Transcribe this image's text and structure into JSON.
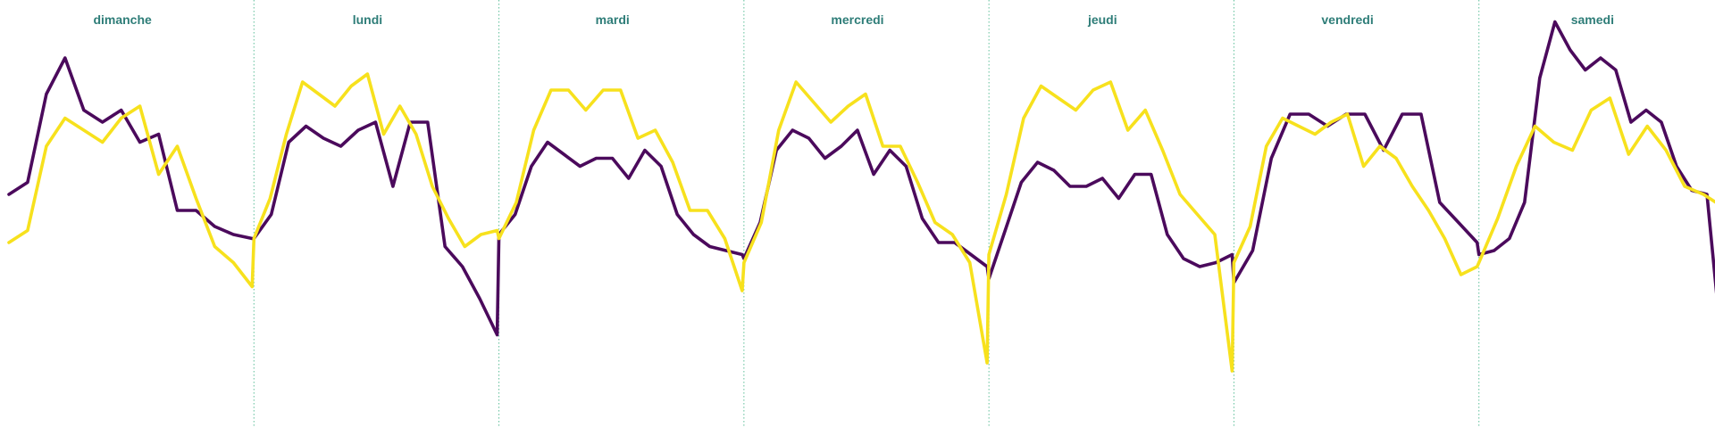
{
  "chart_data": {
    "type": "line",
    "title": "",
    "xlabel": "",
    "ylabel": "",
    "ylim": [
      0,
      100
    ],
    "grid": false,
    "panels": [
      {
        "label": "dimanche",
        "s1": [
          56,
          59,
          81,
          90,
          77,
          74,
          77,
          69,
          71,
          52,
          52,
          48,
          46,
          45
        ],
        "s2": [
          44,
          47,
          68,
          75,
          72,
          69,
          75,
          78,
          61,
          68,
          55,
          43,
          39,
          33
        ]
      },
      {
        "label": "lundi",
        "s1": [
          45,
          51,
          69,
          73,
          70,
          68,
          72,
          74,
          58,
          74,
          74,
          43,
          38,
          30,
          21
        ],
        "s2": [
          45,
          55,
          71,
          84,
          81,
          78,
          83,
          86,
          71,
          78,
          71,
          58,
          50,
          43,
          46,
          47
        ]
      },
      {
        "label": "mardi",
        "s1": [
          46,
          51,
          63,
          69,
          66,
          63,
          65,
          65,
          60,
          67,
          63,
          51,
          46,
          43,
          42,
          41
        ],
        "s2": [
          45,
          54,
          72,
          82,
          82,
          77,
          82,
          82,
          70,
          72,
          64,
          52,
          52,
          45,
          32
        ]
      },
      {
        "label": "mercredi",
        "s1": [
          40,
          49,
          67,
          72,
          70,
          65,
          68,
          72,
          61,
          67,
          63,
          50,
          44,
          44,
          41,
          38
        ],
        "s2": [
          39,
          49,
          72,
          84,
          79,
          74,
          78,
          81,
          68,
          68,
          59,
          49,
          46,
          39,
          14
        ]
      },
      {
        "label": "jeudi",
        "s1": [
          35,
          47,
          59,
          64,
          62,
          58,
          58,
          60,
          55,
          61,
          61,
          46,
          40,
          38,
          39,
          41
        ],
        "s2": [
          41,
          56,
          75,
          83,
          80,
          77,
          82,
          84,
          72,
          77,
          67,
          56,
          51,
          46,
          12
        ]
      },
      {
        "label": "vendredi",
        "s1": [
          34,
          42,
          65,
          76,
          76,
          73,
          76,
          76,
          67,
          76,
          76,
          54,
          49,
          44
        ],
        "s2": [
          39,
          48,
          68,
          75,
          73,
          71,
          74,
          76,
          63,
          68,
          65,
          58,
          52,
          45,
          36,
          38
        ]
      },
      {
        "label": "samedi",
        "s1": [
          41,
          42,
          45,
          54,
          85,
          99,
          92,
          87,
          90,
          87,
          74,
          77,
          74,
          63,
          57,
          56,
          17
        ],
        "s2": [
          39,
          50,
          63,
          73,
          69,
          67,
          77,
          80,
          66,
          73,
          67,
          58,
          56,
          53
        ]
      }
    ],
    "series": [
      {
        "color": "#4b0a5c"
      },
      {
        "color": "#f7e11d"
      }
    ]
  }
}
